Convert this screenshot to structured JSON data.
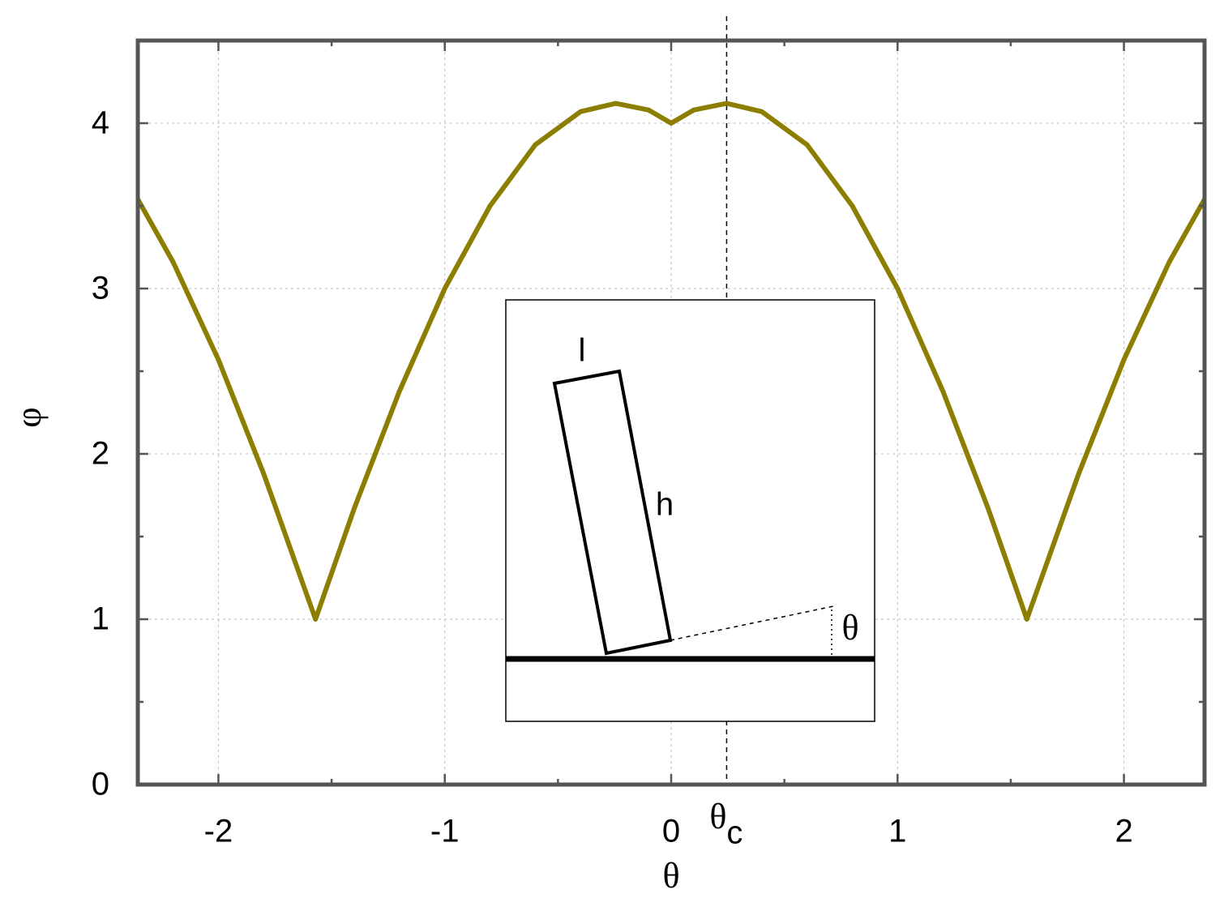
{
  "chart_data": {
    "type": "line",
    "x_label": "θ",
    "y_label": "φ",
    "x": [
      -2.356,
      -2.2,
      -2.0,
      -1.8,
      -1.571,
      -1.4,
      -1.2,
      -1.0,
      -0.8,
      -0.6,
      -0.4,
      -0.245,
      -0.1,
      0,
      0.1,
      0.245,
      0.4,
      0.6,
      0.8,
      1.0,
      1.2,
      1.4,
      1.571,
      1.8,
      2.0,
      2.2,
      2.356
    ],
    "series": [
      {
        "color": "#8c7e00",
        "values": [
          3.54,
          3.16,
          2.57,
          1.88,
          1.0,
          1.67,
          2.38,
          3.0,
          3.5,
          3.87,
          4.07,
          4.12,
          4.08,
          4.0,
          4.08,
          4.12,
          4.07,
          3.87,
          3.5,
          3.0,
          2.38,
          1.67,
          1.0,
          1.88,
          2.57,
          3.16,
          3.54
        ]
      }
    ],
    "xlim": [
      -2.356,
      2.356
    ],
    "ylim": [
      0,
      4.5
    ],
    "xticks": [
      -2,
      -1,
      0,
      1,
      2
    ],
    "yticks": [
      0,
      1,
      2,
      3,
      4
    ],
    "xminorticks": [
      -1.5,
      -0.5,
      0.5,
      1.5
    ],
    "yminorticks": [
      0.5,
      1.5,
      2.5,
      3.5
    ],
    "grid": true,
    "annotation": {
      "x": 0.245,
      "label": "θ",
      "subscript": "c"
    },
    "inset": {
      "width_label": "l",
      "height_label": "h",
      "angle_label": "θ"
    }
  }
}
